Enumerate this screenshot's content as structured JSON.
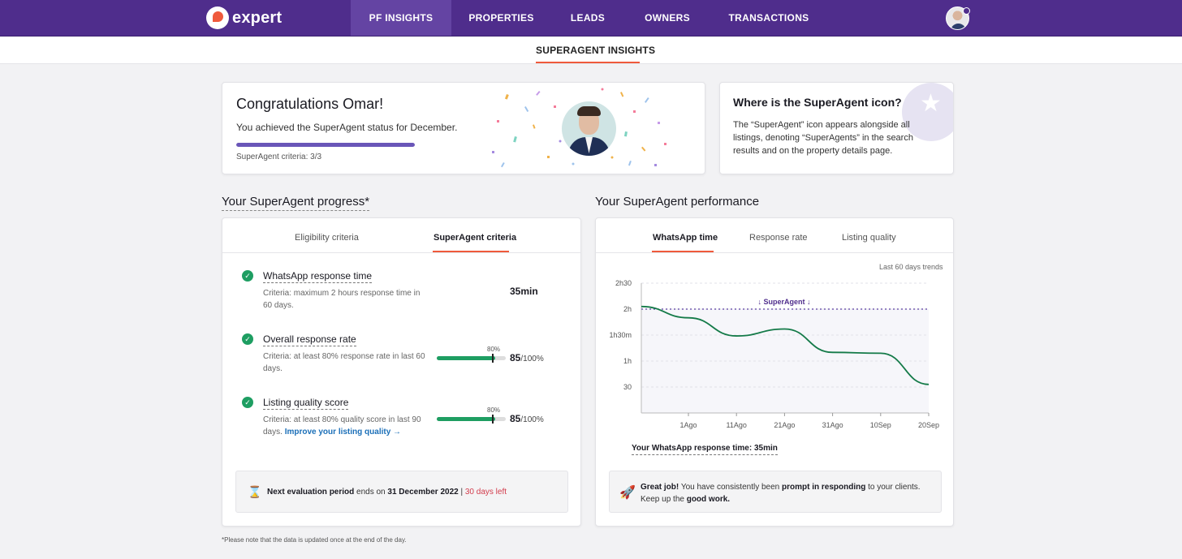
{
  "nav": {
    "logo_text": "expert",
    "items": [
      "PF INSIGHTS",
      "PROPERTIES",
      "LEADS",
      "OWNERS",
      "TRANSACTIONS"
    ],
    "active_index": 0
  },
  "subnav": {
    "tab": "SUPERAGENT INSIGHTS"
  },
  "congrats": {
    "title": "Congratulations Omar!",
    "subtitle": "You achieved the SuperAgent status for December.",
    "criteria_text": "SuperAgent criteria: 3/3",
    "criteria_progress": 1.0
  },
  "where": {
    "title": "Where is the SuperAgent icon?",
    "body": "The “SuperAgent” icon appears alongside all listings, denoting “SuperAgents” in the search results and on the property details page.",
    "badge_icon": "star-trophy-icon"
  },
  "progress": {
    "heading": "Your SuperAgent progress*",
    "tabs": [
      "Eligibility criteria",
      "SuperAgent criteria"
    ],
    "active_tab": 1,
    "criteria": [
      {
        "title": "WhatsApp response time",
        "desc": "Criteria: maximum 2 hours response time in 60 days.",
        "value": "35min"
      },
      {
        "title": "Overall response rate",
        "desc": "Criteria: at least 80% response rate in last 60 days.",
        "threshold_label": "80%",
        "value": "85",
        "value_suffix": "/100%",
        "fill": 0.85
      },
      {
        "title": "Listing quality score",
        "desc": "Criteria: at least 80% quality score in last 90 days.",
        "link": "Improve your listing quality →",
        "threshold_label": "80%",
        "value": "85",
        "value_suffix": "/100%",
        "fill": 0.85
      }
    ],
    "eval": {
      "prefix": "Next evaluation period",
      "middle": " ends on ",
      "date": "31 December 2022",
      "sep": " | ",
      "days_left": "30 days left"
    }
  },
  "performance": {
    "heading": "Your SuperAgent performance",
    "tabs": [
      "WhatsApp time",
      "Response rate",
      "Listing quality"
    ],
    "active_tab": 0,
    "trend_label": "Last 60 days trends",
    "response_label": "Your WhatsApp response time: 35min",
    "great": {
      "b1": "Great job!",
      "t1": " You have consistently been ",
      "b2": "prompt in responding",
      "t2": " to your clients. Keep up the ",
      "b3": "good work."
    }
  },
  "chart_data": {
    "type": "line",
    "x": [
      "1Ago",
      "11Ago",
      "21Ago",
      "31Ago",
      "10Sep",
      "20Sep"
    ],
    "y_ticks": [
      "2h30",
      "2h",
      "1h30m",
      "1h",
      "30"
    ],
    "ylim_minutes": [
      0,
      150
    ],
    "threshold": {
      "label": "↓ SuperAgent ↓",
      "value_minutes": 120
    },
    "series": [
      {
        "values_minutes": [
          {
            "x": "0",
            "y": 123
          },
          {
            "x": "1Ago",
            "y": 110
          },
          {
            "x": "11Ago",
            "y": 89
          },
          {
            "x": "21Ago",
            "y": 97
          },
          {
            "x": "31Ago",
            "y": 70
          },
          {
            "x": "10Sep",
            "y": 69
          },
          {
            "x": "20Sep",
            "y": 33
          }
        ],
        "color": "#147a48"
      }
    ]
  },
  "footnote": "*Please note that the data is updated once at the end of the day.",
  "colors": {
    "brand": "#4f2d8c",
    "accent": "#ef5a3c",
    "success": "#1e9e62"
  }
}
